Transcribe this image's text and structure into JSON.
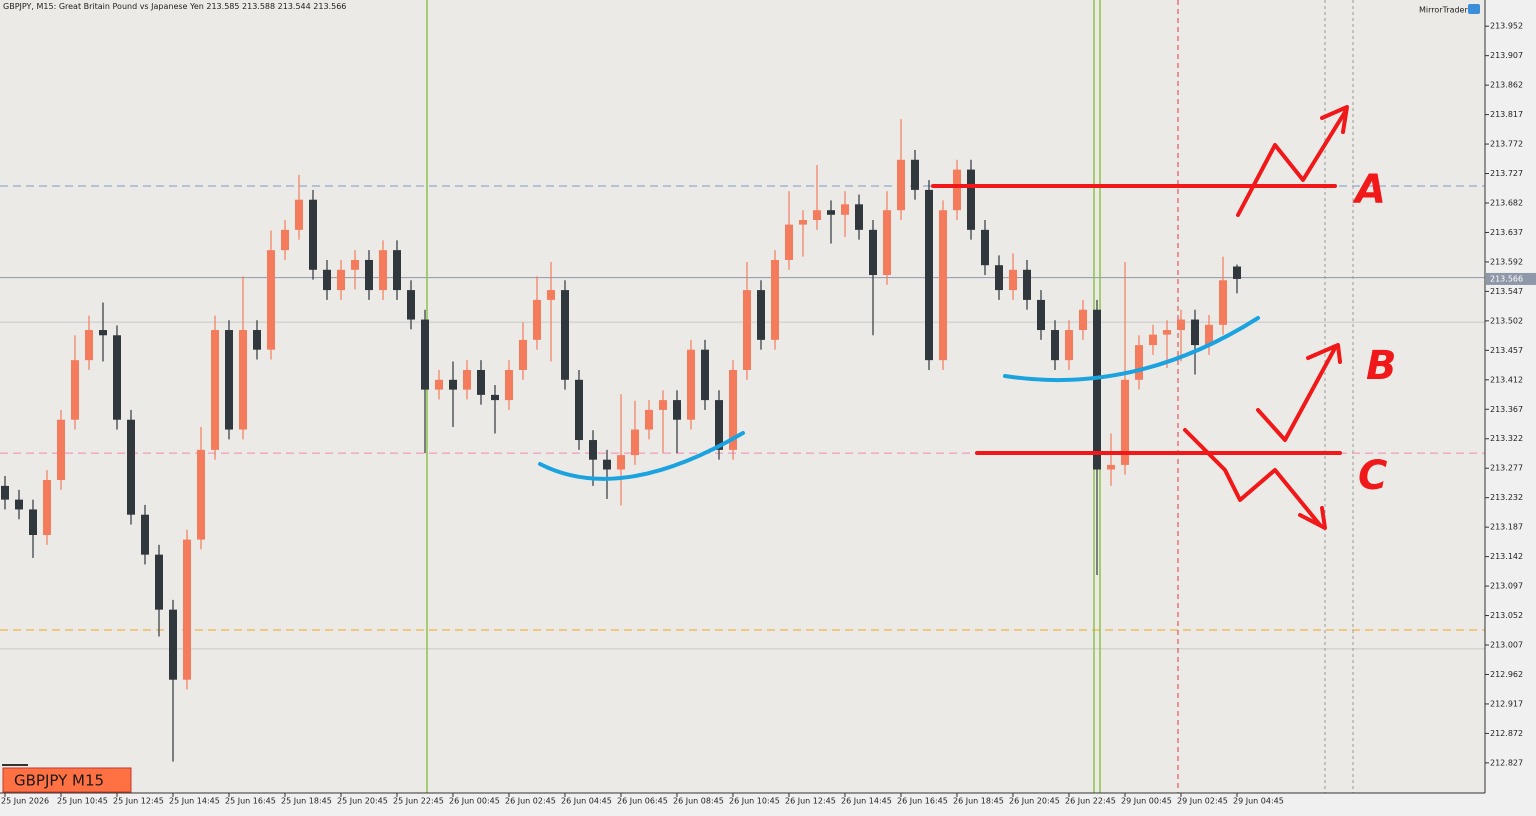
{
  "chart_data": {
    "type": "candlestick",
    "title": "GBPJPY, M15:  Great Britain Pound vs Japanese Yen",
    "symbol_label": "GBPJPY M15",
    "brand": "MirrorTrader",
    "up_color": "#f47c5c",
    "down_color": "#30373d",
    "open": [
      213.25,
      213.229,
      213.214,
      213.175,
      213.259,
      213.351,
      213.442,
      213.488,
      213.48,
      213.351,
      213.206,
      213.145,
      213.061,
      212.954,
      213.168,
      213.305,
      213.488,
      213.336,
      213.488,
      213.458,
      213.61,
      213.641,
      213.687,
      213.58,
      213.549,
      213.58,
      213.595,
      213.549,
      213.61,
      213.549,
      213.504,
      213.397,
      213.412,
      213.397,
      213.427,
      213.389,
      213.381,
      213.427,
      213.473,
      213.534,
      213.549,
      213.412,
      213.32,
      213.29,
      213.275,
      213.297,
      213.336,
      213.366,
      213.381,
      213.351,
      213.458,
      213.381,
      213.305,
      213.427,
      213.549,
      213.473,
      213.595,
      213.649,
      213.656,
      213.671,
      213.664,
      213.68,
      213.641,
      213.572,
      213.671,
      213.748,
      213.702,
      213.442,
      213.671,
      213.733,
      213.641,
      213.587,
      213.549,
      213.58,
      213.534,
      213.488,
      213.442,
      213.488,
      213.519,
      213.275,
      213.282,
      213.412,
      213.465,
      213.481,
      213.488,
      213.504,
      213.465,
      213.496,
      213.585
    ],
    "high": [
      213.265,
      213.244,
      213.229,
      213.274,
      213.366,
      213.48,
      213.51,
      213.53,
      213.495,
      213.366,
      213.221,
      213.16,
      213.076,
      213.183,
      213.34,
      213.51,
      213.503,
      213.57,
      213.503,
      213.64,
      213.656,
      213.725,
      213.702,
      213.595,
      213.595,
      213.61,
      213.61,
      213.625,
      213.625,
      213.564,
      213.519,
      213.427,
      213.44,
      213.442,
      213.442,
      213.404,
      213.442,
      213.5,
      213.57,
      213.592,
      213.564,
      213.427,
      213.335,
      213.305,
      213.39,
      213.38,
      213.381,
      213.396,
      213.396,
      213.473,
      213.473,
      213.396,
      213.442,
      213.592,
      213.564,
      213.61,
      213.7,
      213.671,
      213.74,
      213.686,
      213.7,
      213.695,
      213.656,
      213.7,
      213.81,
      213.763,
      213.717,
      213.686,
      213.748,
      213.748,
      213.656,
      213.602,
      213.605,
      213.595,
      213.549,
      213.503,
      213.503,
      213.534,
      213.534,
      213.33,
      213.592,
      213.48,
      213.496,
      213.503,
      213.519,
      213.519,
      213.511,
      213.6,
      213.588
    ],
    "low": [
      213.214,
      213.199,
      213.14,
      213.16,
      213.244,
      213.336,
      213.427,
      213.44,
      213.336,
      213.191,
      213.13,
      213.02,
      212.829,
      212.939,
      213.153,
      213.29,
      213.321,
      213.321,
      213.443,
      213.443,
      213.595,
      213.626,
      213.565,
      213.534,
      213.534,
      213.55,
      213.534,
      213.534,
      213.534,
      213.489,
      213.3,
      213.382,
      213.34,
      213.382,
      213.374,
      213.33,
      213.366,
      213.412,
      213.458,
      213.44,
      213.397,
      213.305,
      213.25,
      213.23,
      213.22,
      213.282,
      213.321,
      213.3,
      213.3,
      213.336,
      213.366,
      213.29,
      213.29,
      213.412,
      213.458,
      213.458,
      213.58,
      213.6,
      213.641,
      213.62,
      213.63,
      213.626,
      213.48,
      213.557,
      213.656,
      213.687,
      213.427,
      213.427,
      213.656,
      213.626,
      213.572,
      213.534,
      213.534,
      213.519,
      213.473,
      213.427,
      213.427,
      213.473,
      213.114,
      213.25,
      213.267,
      213.397,
      213.45,
      213.43,
      213.44,
      213.42,
      213.45,
      213.481,
      213.544
    ],
    "close": [
      213.229,
      213.214,
      213.175,
      213.259,
      213.351,
      213.442,
      213.488,
      213.48,
      213.351,
      213.206,
      213.145,
      213.061,
      212.954,
      213.168,
      213.305,
      213.488,
      213.336,
      213.488,
      213.458,
      213.61,
      213.641,
      213.687,
      213.58,
      213.549,
      213.58,
      213.595,
      213.549,
      213.61,
      213.549,
      213.504,
      213.397,
      213.412,
      213.397,
      213.427,
      213.389,
      213.381,
      213.427,
      213.473,
      213.534,
      213.549,
      213.412,
      213.32,
      213.29,
      213.275,
      213.297,
      213.336,
      213.366,
      213.381,
      213.351,
      213.458,
      213.381,
      213.305,
      213.427,
      213.549,
      213.473,
      213.595,
      213.649,
      213.656,
      213.671,
      213.664,
      213.68,
      213.641,
      213.572,
      213.671,
      213.748,
      213.702,
      213.442,
      213.671,
      213.733,
      213.641,
      213.587,
      213.549,
      213.58,
      213.534,
      213.488,
      213.442,
      213.488,
      213.519,
      213.275,
      213.282,
      213.412,
      213.465,
      213.481,
      213.488,
      213.504,
      213.465,
      213.496,
      213.564,
      213.566
    ],
    "categories": [
      "25 Jun 2026",
      null,
      null,
      null,
      "25 Jun 10:45",
      null,
      null,
      null,
      "25 Jun 12:45",
      null,
      null,
      null,
      "25 Jun 14:45",
      null,
      null,
      null,
      "25 Jun 16:45",
      null,
      null,
      null,
      "25 Jun 18:45",
      null,
      null,
      null,
      "25 Jun 20:45",
      null,
      null,
      null,
      "25 Jun 22:45",
      null,
      null,
      null,
      "26 Jun 00:45",
      null,
      null,
      null,
      "26 Jun 02:45",
      null,
      null,
      null,
      "26 Jun 04:45",
      null,
      null,
      null,
      "26 Jun 06:45",
      null,
      null,
      null,
      "26 Jun 08:45",
      null,
      null,
      null,
      "26 Jun 10:45",
      null,
      null,
      null,
      "26 Jun 12:45",
      null,
      null,
      null,
      "26 Jun 14:45",
      null,
      null,
      null,
      "26 Jun 16:45",
      null,
      null,
      null,
      "26 Jun 18:45",
      null,
      null,
      null,
      "26 Jun 20:45",
      null,
      null,
      null,
      "26 Jun 22:45",
      null,
      null,
      null,
      "29 Jun 00:45",
      null,
      null,
      null,
      "29 Jun 02:45",
      null,
      null,
      null,
      "29 Jun 04:45"
    ],
    "ylim": [
      212.781,
      213.992
    ],
    "yticks": [
      213.952,
      213.907,
      213.862,
      213.817,
      213.772,
      213.727,
      213.682,
      213.637,
      213.592,
      213.547,
      213.502,
      213.457,
      213.412,
      213.367,
      213.322,
      213.277,
      213.232,
      213.187,
      213.142,
      213.097,
      213.052,
      213.007,
      212.962,
      212.917,
      212.872,
      212.827
    ],
    "hlines": [
      {
        "value": 213.708,
        "color": "#7d9bc8",
        "dash": true
      },
      {
        "value": 213.568,
        "color": "#8e98a8",
        "dash": false
      },
      {
        "value": 213.5,
        "color": "#c8c8c8",
        "dash": false
      },
      {
        "value": 213.3,
        "color": "#f08cb4",
        "dash": true
      },
      {
        "value": 213.03,
        "color": "#f5a623",
        "dash": true
      },
      {
        "value": 213.001,
        "color": "#c8c8c8",
        "dash": false
      }
    ],
    "annotations": [
      "A",
      "B",
      "C"
    ]
  }
}
